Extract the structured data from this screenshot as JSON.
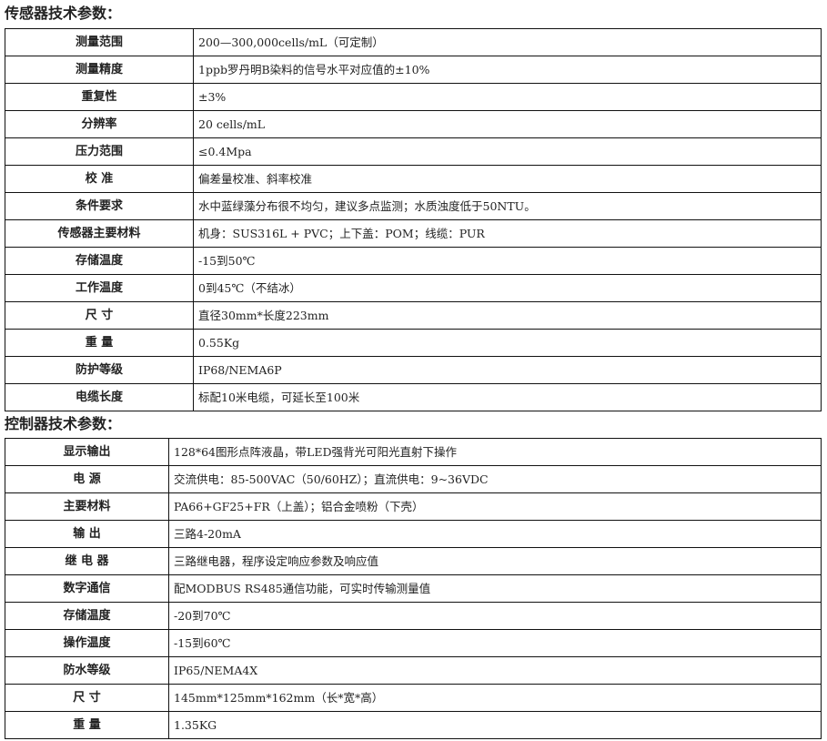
{
  "sensor": {
    "title": "传感器技术参数：",
    "rows": [
      {
        "k": "测量范围",
        "v": "200—300,000cells/mL（可定制）"
      },
      {
        "k": "测量精度",
        "v": "1ppb罗丹明B染料的信号水平对应值的±10%"
      },
      {
        "k": "重复性",
        "v": "±3%"
      },
      {
        "k": "分辨率",
        "v": "20 cells/mL"
      },
      {
        "k": "压力范围",
        "v": "≤0.4Mpa"
      },
      {
        "k": "校 准",
        "v": "偏差量校准、斜率校准"
      },
      {
        "k": "条件要求",
        "v": "水中蓝绿藻分布很不均匀，建议多点监测；水质浊度低于50NTU。"
      },
      {
        "k": "传感器主要材料",
        "v": "机身：SUS316L + PVC；上下盖：POM；线缆：PUR"
      },
      {
        "k": "存储温度",
        "v": "-15到50℃"
      },
      {
        "k": "工作温度",
        "v": "0到45℃（不结冰）"
      },
      {
        "k": "尺 寸",
        "v": "直径30mm*长度223mm"
      },
      {
        "k": "重 量",
        "v": "0.55Kg"
      },
      {
        "k": "防护等级",
        "v": "IP68/NEMA6P"
      },
      {
        "k": "电缆长度",
        "v": "标配10米电缆，可延长至100米"
      }
    ]
  },
  "controller": {
    "title": "控制器技术参数：",
    "rows": [
      {
        "k": "显示输出",
        "v": "128*64图形点阵液晶，带LED强背光可阳光直射下操作"
      },
      {
        "k": "电 源",
        "v": "交流供电：85-500VAC（50/60HZ）；直流供电：9~36VDC"
      },
      {
        "k": "主要材料",
        "v": "PA66+GF25+FR（上盖）；铝合金喷粉（下壳）"
      },
      {
        "k": "输 出",
        "v": "三路4-20mA"
      },
      {
        "k": "继 电 器",
        "v": "三路继电器，程序设定响应参数及响应值"
      },
      {
        "k": "数字通信",
        "v": "配MODBUS RS485通信功能，可实时传输测量值"
      },
      {
        "k": "存储温度",
        "v": "-20到70℃"
      },
      {
        "k": "操作温度",
        "v": "-15到60℃"
      },
      {
        "k": "防水等级",
        "v": "IP65/NEMA4X"
      },
      {
        "k": "尺 寸",
        "v": "145mm*125mm*162mm（长*宽*高）"
      },
      {
        "k": "重 量",
        "v": "1.35KG"
      }
    ]
  }
}
